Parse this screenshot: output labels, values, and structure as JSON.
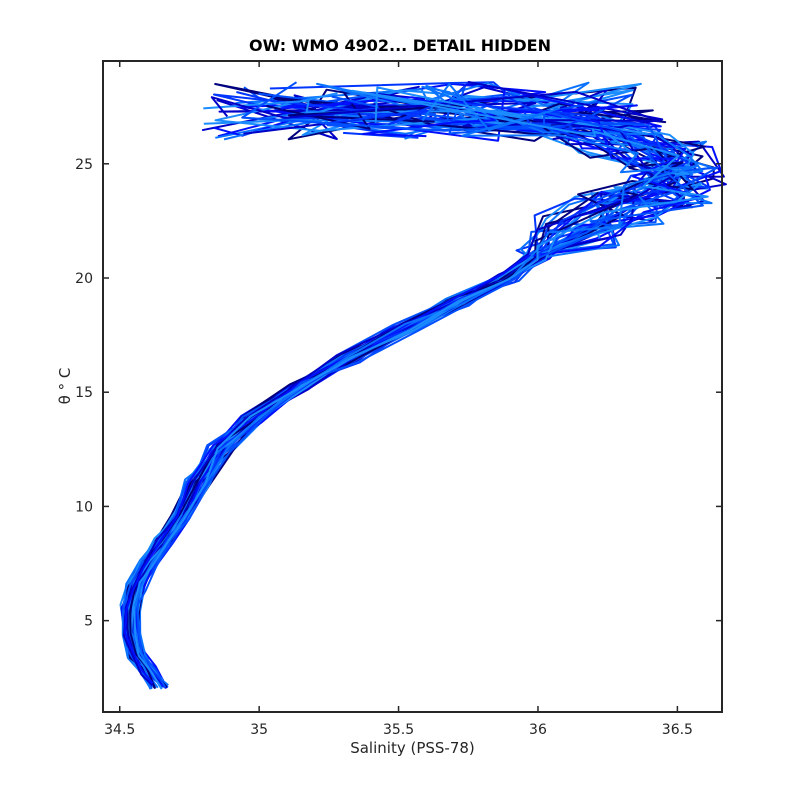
{
  "chart_data": {
    "type": "line",
    "title": "OW: WMO 4902... DETAIL HIDDEN",
    "xlabel": "Salinity (PSS-78)",
    "ylabel": "θ ° C",
    "xlim": [
      34.44,
      36.66
    ],
    "ylim": [
      1,
      29.5
    ],
    "x_ticks": [
      34.5,
      35,
      35.5,
      36,
      36.5
    ],
    "x_tick_labels": [
      "34.5",
      "35",
      "35.5",
      "36",
      "36.5"
    ],
    "y_ticks": [
      5,
      10,
      15,
      20,
      25
    ],
    "y_tick_labels": [
      "5",
      "10",
      "15",
      "20",
      "25"
    ],
    "grid": false,
    "colors": [
      "#00007f",
      "#0000c8",
      "#0010ff",
      "#0035ff",
      "#0050ff",
      "#0a72ff",
      "#1a8cff"
    ],
    "series": [
      {
        "x": [
          34.64,
          34.6,
          34.56,
          34.54,
          34.54,
          34.56,
          34.6,
          34.66,
          34.72,
          34.78,
          34.86,
          34.98,
          35.15,
          35.32,
          35.52,
          35.72,
          35.88,
          36.0,
          36.12,
          36.28,
          36.45,
          36.5,
          36.45,
          36.3,
          36.1,
          35.85,
          35.6,
          35.35,
          35.1,
          35.0
        ],
        "y": [
          2.2,
          2.8,
          3.5,
          4.5,
          5.5,
          6.5,
          7.5,
          8.5,
          9.5,
          11.0,
          12.5,
          13.8,
          15.3,
          16.5,
          17.8,
          19.0,
          20.0,
          21.0,
          22.0,
          23.0,
          23.8,
          24.5,
          25.2,
          26.0,
          26.6,
          27.1,
          27.4,
          27.7,
          27.9,
          28.0
        ]
      }
    ]
  }
}
